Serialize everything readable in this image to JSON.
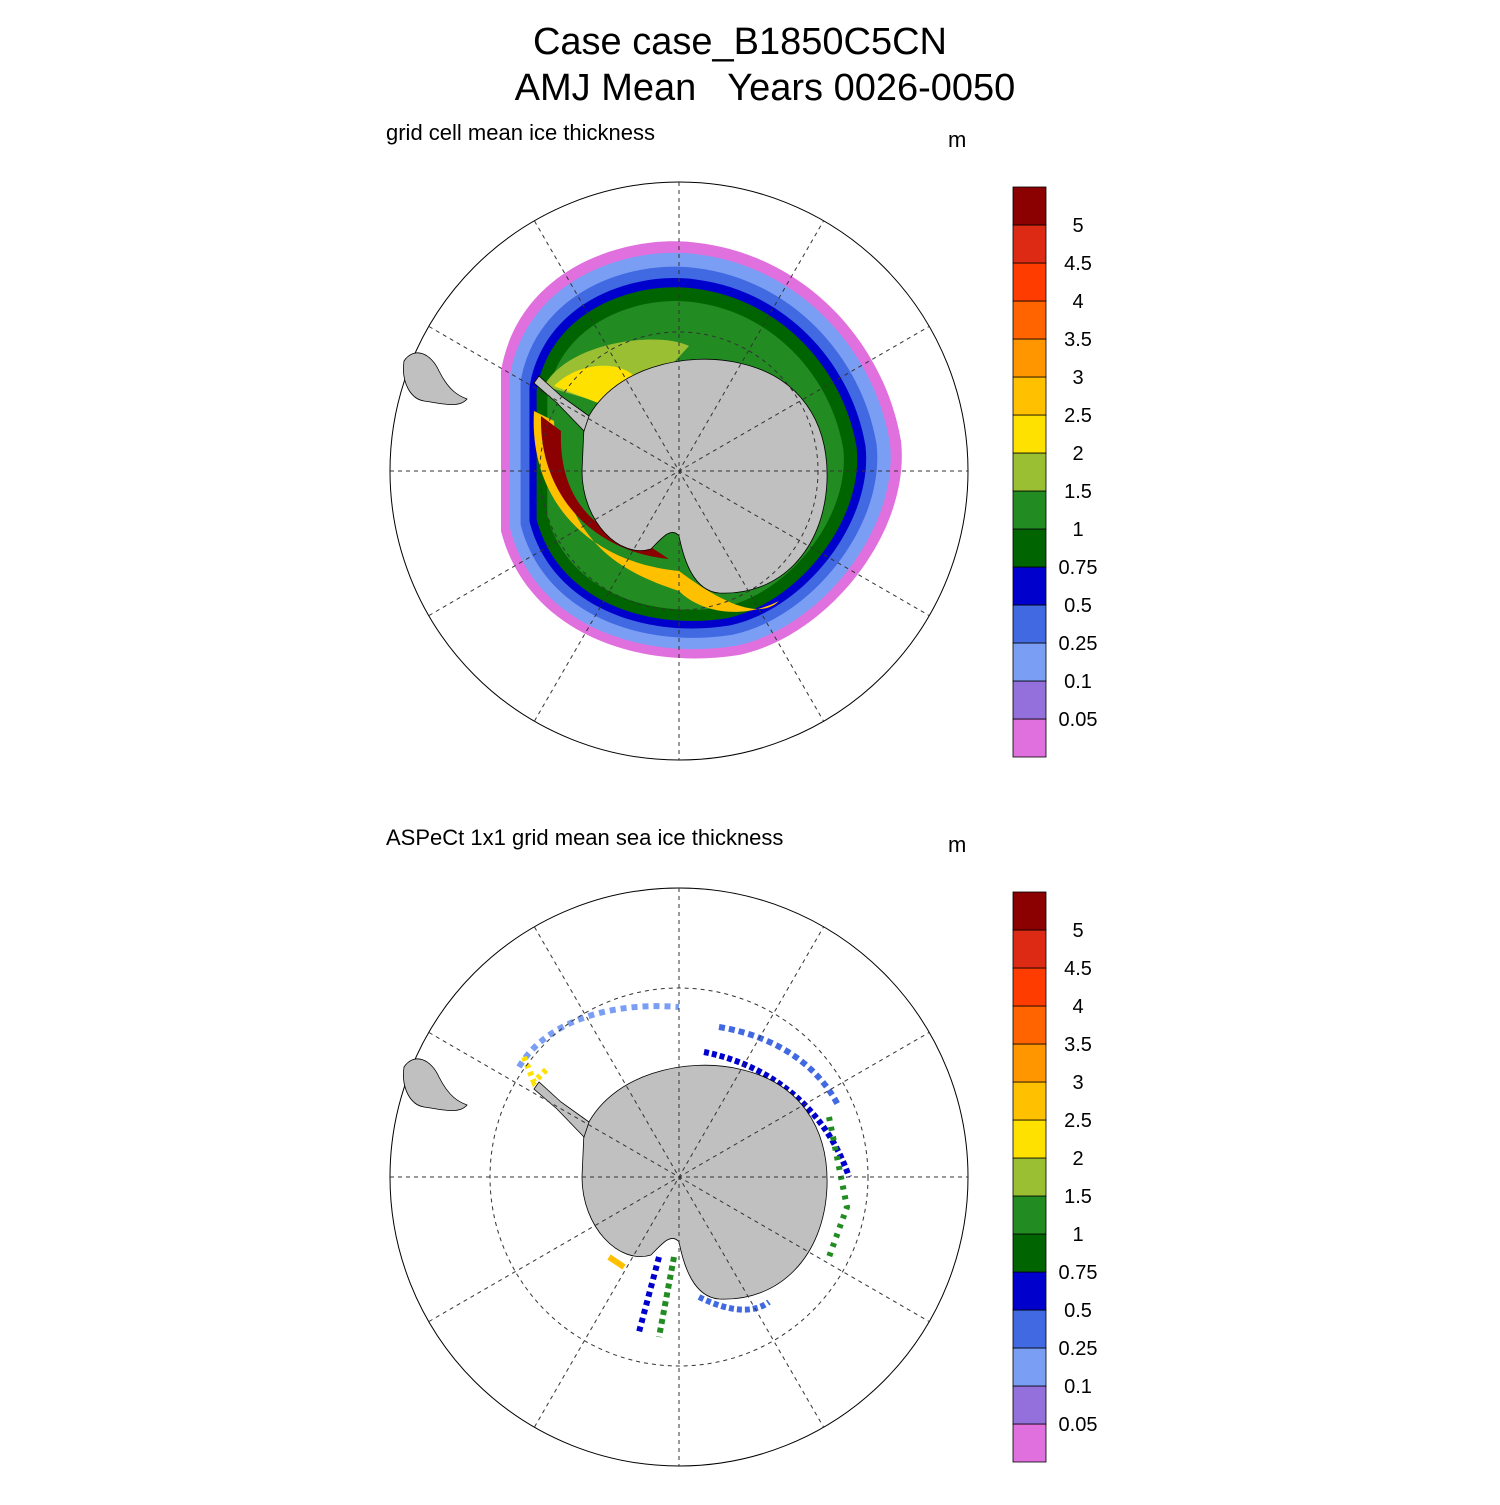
{
  "title": [
    "Case case_B1850C5CN",
    "AMJ Mean   Years 0026-0050"
  ],
  "panels": [
    {
      "title": "grid cell mean ice thickness",
      "units": "m",
      "colorbar": {
        "levels": [
          0.05,
          0.1,
          0.25,
          0.5,
          0.75,
          1,
          1.5,
          2,
          2.5,
          3,
          3.5,
          4,
          4.5,
          5
        ],
        "colors": [
          "#e070dd",
          "#9370db",
          "#7b9ef5",
          "#4169e1",
          "#0000cd",
          "#006400",
          "#228b22",
          "#9bbf33",
          "#ffe100",
          "#ffc000",
          "#ff9600",
          "#ff6400",
          "#ff3c00",
          "#dd2a14",
          "#8b0000"
        ]
      }
    },
    {
      "title": "ASPeCt 1x1 grid mean sea ice thickness",
      "units": "m",
      "colorbar": {
        "levels": [
          0.05,
          0.1,
          0.25,
          0.5,
          0.75,
          1,
          1.5,
          2,
          2.5,
          3,
          3.5,
          4,
          4.5,
          5
        ],
        "colors": [
          "#e070dd",
          "#9370db",
          "#7b9ef5",
          "#4169e1",
          "#0000cd",
          "#006400",
          "#228b22",
          "#9bbf33",
          "#ffe100",
          "#ffc000",
          "#ff9600",
          "#ff6400",
          "#ff3c00",
          "#dd2a14",
          "#8b0000"
        ]
      }
    }
  ]
}
